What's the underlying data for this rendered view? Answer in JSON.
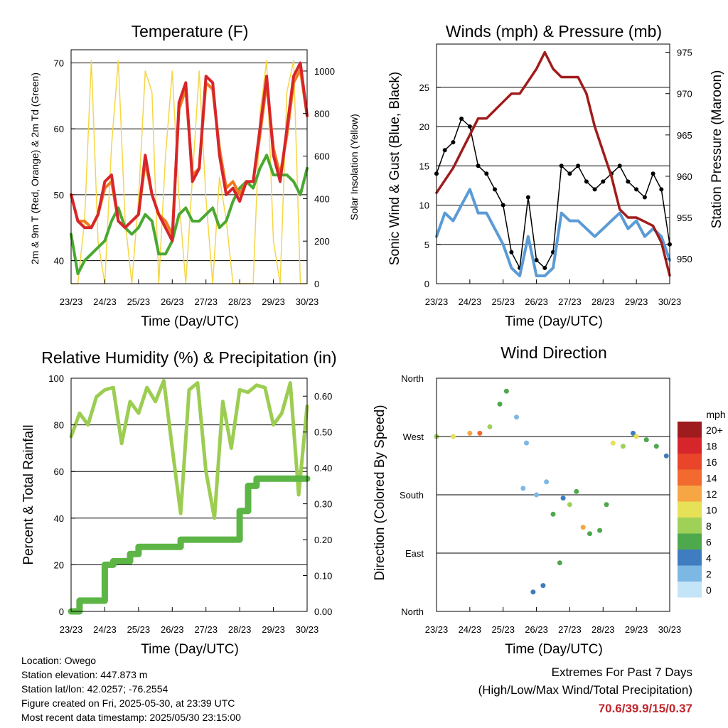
{
  "x_ticks": [
    "23/23",
    "24/23",
    "25/23",
    "26/23",
    "27/23",
    "28/23",
    "29/23",
    "30/23"
  ],
  "x_label": "Time (Day/UTC)",
  "colors": {
    "red": "#d7262b",
    "orange": "#f07a1e",
    "green": "#4aa832",
    "yellow": "#f5d645",
    "maroon": "#a01c1c",
    "black": "#000000",
    "blue": "#5b9bd5",
    "rh_green": "#9ccd52",
    "precip_green": "#5cb545"
  },
  "charts": {
    "temp": {
      "title": "Temperature (F)",
      "ylabel": "2m & 9m T (Red, Orange) & 2m Td (Green)",
      "y2label": "Solar Insolation (Yellow)"
    },
    "wind": {
      "title": "Winds (mph) & Pressure (mb)",
      "ylabel": "Sonic Wind & Gust (Blue, Black)",
      "y2label": "Station Pressure (Maroon)"
    },
    "rh": {
      "title": "Relative Humidity (%) & Precipitation (in)",
      "ylabel": "Percent & Total Rainfall"
    },
    "dir": {
      "title": "Wind Direction",
      "ylabel": "Direction (Colored By Speed)"
    }
  },
  "chart_data": [
    {
      "type": "line",
      "title": "Temperature (F)",
      "xlabel": "Time (Day/UTC)",
      "ylabel": "2m & 9m T (Red, Orange) & 2m Td (Green)",
      "y2label": "Solar Insolation (Yellow)",
      "x": [
        0,
        0.2,
        0.4,
        0.6,
        0.8,
        1.0,
        1.2,
        1.4,
        1.6,
        1.8,
        2.0,
        2.2,
        2.4,
        2.6,
        2.8,
        3.0,
        3.2,
        3.4,
        3.6,
        3.8,
        4.0,
        4.2,
        4.4,
        4.6,
        4.8,
        5.0,
        5.2,
        5.4,
        5.6,
        5.8,
        6.0,
        6.2,
        6.4,
        6.6,
        6.8,
        7.0
      ],
      "series": [
        {
          "name": "2m T",
          "values": [
            50,
            46,
            45,
            45,
            47,
            52,
            53,
            46,
            45,
            46,
            47,
            56,
            50,
            47,
            45,
            43,
            64,
            67,
            52,
            54,
            68,
            67,
            56,
            50,
            51,
            49,
            52,
            52,
            60,
            68,
            56,
            52,
            60,
            68,
            70,
            62
          ]
        },
        {
          "name": "9m T",
          "values": [
            50,
            46,
            46,
            45,
            47,
            51,
            52,
            46,
            45,
            46,
            47,
            55,
            50,
            47,
            46,
            44,
            63,
            66,
            53,
            54,
            67,
            66,
            57,
            51,
            52,
            50,
            52,
            52,
            59,
            67,
            57,
            53,
            59,
            67,
            69,
            62
          ]
        },
        {
          "name": "2m Td",
          "values": [
            44,
            38,
            40,
            41,
            42,
            43,
            46,
            48,
            45,
            44,
            45,
            47,
            46,
            41,
            41,
            43,
            47,
            48,
            46,
            46,
            47,
            48,
            45,
            46,
            49,
            51,
            52,
            51,
            54,
            56,
            53,
            53,
            53,
            52,
            50,
            54
          ]
        },
        {
          "name": "Solar Insolation",
          "values": [
            0,
            0,
            300,
            1050,
            200,
            0,
            650,
            1050,
            300,
            0,
            400,
            1000,
            900,
            0,
            600,
            1000,
            400,
            0,
            500,
            1000,
            400,
            0,
            500,
            300,
            0,
            0,
            0,
            0,
            800,
            1050,
            200,
            0,
            900,
            1050,
            0,
            0
          ]
        }
      ],
      "ylim": [
        36.5,
        72
      ],
      "y2lim": [
        0,
        1100
      ],
      "y_ticks": [
        40,
        50,
        60,
        70
      ],
      "y2_ticks": [
        0,
        200,
        400,
        600,
        800,
        1000
      ]
    },
    {
      "type": "line",
      "title": "Winds (mph) & Pressure (mb)",
      "xlabel": "Time (Day/UTC)",
      "ylabel": "Sonic Wind & Gust (Blue, Black)",
      "y2label": "Station Pressure (Maroon)",
      "x": [
        0,
        0.25,
        0.5,
        0.75,
        1.0,
        1.25,
        1.5,
        1.75,
        2.0,
        2.25,
        2.5,
        2.75,
        3.0,
        3.25,
        3.5,
        3.75,
        4.0,
        4.25,
        4.5,
        4.75,
        5.0,
        5.25,
        5.5,
        5.75,
        6.0,
        6.25,
        6.5,
        6.75,
        7.0
      ],
      "series": [
        {
          "name": "Sonic Wind",
          "values": [
            6,
            9,
            8,
            10,
            12,
            9,
            9,
            7,
            5,
            2,
            1,
            6,
            1,
            1,
            2,
            9,
            8,
            8,
            7,
            6,
            7,
            8,
            9,
            7,
            8,
            6,
            7,
            6,
            3
          ]
        },
        {
          "name": "Gust",
          "values": [
            14,
            17,
            18,
            21,
            20,
            15,
            14,
            12,
            10,
            4,
            2,
            11,
            3,
            2,
            4,
            15,
            14,
            15,
            13,
            12,
            13,
            14,
            15,
            13,
            12,
            11,
            14,
            12,
            5
          ]
        },
        {
          "name": "Station Pressure",
          "values": [
            958,
            959.5,
            961,
            963,
            965,
            967,
            967,
            968,
            969,
            970,
            970,
            971.5,
            973,
            975,
            973,
            972,
            972,
            972,
            970,
            966,
            963,
            960,
            956,
            955,
            955,
            954.5,
            954,
            952,
            948
          ]
        }
      ],
      "ylim": [
        0,
        30.5
      ],
      "y2lim": [
        947,
        976
      ],
      "y_ticks": [
        0,
        5,
        10,
        15,
        20,
        25
      ],
      "y2_ticks": [
        950,
        955,
        960,
        965,
        970,
        975
      ]
    },
    {
      "type": "line",
      "title": "Relative Humidity (%) & Precipitation (in)",
      "xlabel": "Time (Day/UTC)",
      "ylabel": "Percent & Total Rainfall",
      "x": [
        0,
        0.25,
        0.5,
        0.75,
        1.0,
        1.25,
        1.5,
        1.75,
        2.0,
        2.25,
        2.5,
        2.75,
        3.0,
        3.25,
        3.5,
        3.75,
        4.0,
        4.25,
        4.5,
        4.75,
        5.0,
        5.25,
        5.5,
        5.75,
        6.0,
        6.25,
        6.5,
        6.75,
        7.0
      ],
      "series": [
        {
          "name": "Relative Humidity",
          "values": [
            75,
            85,
            80,
            92,
            95,
            96,
            72,
            90,
            85,
            96,
            90,
            99,
            70,
            42,
            95,
            98,
            60,
            40,
            90,
            70,
            95,
            94,
            97,
            96,
            80,
            85,
            98,
            50,
            88
          ]
        },
        {
          "name": "Total Precipitation",
          "values": [
            0,
            0.03,
            0.03,
            0.03,
            0.13,
            0.14,
            0.14,
            0.16,
            0.18,
            0.18,
            0.18,
            0.18,
            0.18,
            0.2,
            0.2,
            0.2,
            0.2,
            0.2,
            0.2,
            0.2,
            0.28,
            0.35,
            0.37,
            0.37,
            0.37,
            0.37,
            0.37,
            0.37,
            0.37
          ]
        }
      ],
      "ylim": [
        0,
        100
      ],
      "y2lim": [
        0,
        0.65
      ],
      "y_ticks": [
        0,
        20,
        40,
        60,
        80,
        100
      ],
      "y2_ticks": [
        0,
        0.1,
        0.2,
        0.3,
        0.4,
        0.5,
        0.6
      ]
    },
    {
      "type": "scatter",
      "title": "Wind Direction",
      "xlabel": "Time (Day/UTC)",
      "ylabel": "Direction (Colored By Speed)",
      "y_ticks": [
        "North",
        "East",
        "South",
        "West",
        "North"
      ],
      "colorbar": {
        "label": "mph",
        "levels": [
          "20+",
          "18",
          "16",
          "14",
          "12",
          "10",
          "8",
          "6",
          "4",
          "2",
          "0"
        ],
        "colors": [
          "#9e1b1e",
          "#d7262b",
          "#e8452a",
          "#f26a2f",
          "#f7a644",
          "#e6e156",
          "#9fd058",
          "#4ea84c",
          "#3f7cc0",
          "#7cb8e3",
          "#c4e4f7"
        ]
      },
      "x": [
        0.0,
        0.5,
        1.0,
        1.3,
        1.6,
        1.9,
        2.1,
        2.4,
        2.6,
        2.7,
        2.9,
        3.0,
        3.2,
        3.3,
        3.5,
        3.7,
        3.8,
        4.0,
        4.2,
        4.4,
        4.6,
        4.9,
        5.1,
        5.3,
        5.6,
        5.9,
        6.0,
        6.3,
        6.6,
        6.9
      ],
      "values": [
        270,
        270,
        275,
        275,
        285,
        320,
        340,
        300,
        190,
        260,
        30,
        180,
        40,
        200,
        150,
        75,
        175,
        165,
        185,
        130,
        120,
        125,
        165,
        260,
        255,
        275,
        270,
        265,
        255,
        240
      ],
      "speeds": [
        8,
        10,
        12,
        14,
        8,
        6,
        6,
        2,
        2,
        2,
        4,
        2,
        4,
        2,
        6,
        6,
        4,
        8,
        6,
        12,
        6,
        6,
        6,
        10,
        8,
        4,
        10,
        6,
        6,
        4
      ]
    }
  ],
  "info": {
    "location": "Location: Owego",
    "elevation": "Station elevation: 447.873 m",
    "latlon": "Station lat/lon: 42.0257; -76.2554",
    "created": "Figure created on Fri, 2025-05-30, at 23:39 UTC",
    "recent": "Most recent data timestamp: 2025/05/30 23:15:00"
  },
  "extremes": {
    "title": "Extremes For Past 7 Days",
    "subtitle": "(High/Low/Max Wind/Total Precipitation)",
    "values": "70.6/39.9/15/0.37"
  }
}
